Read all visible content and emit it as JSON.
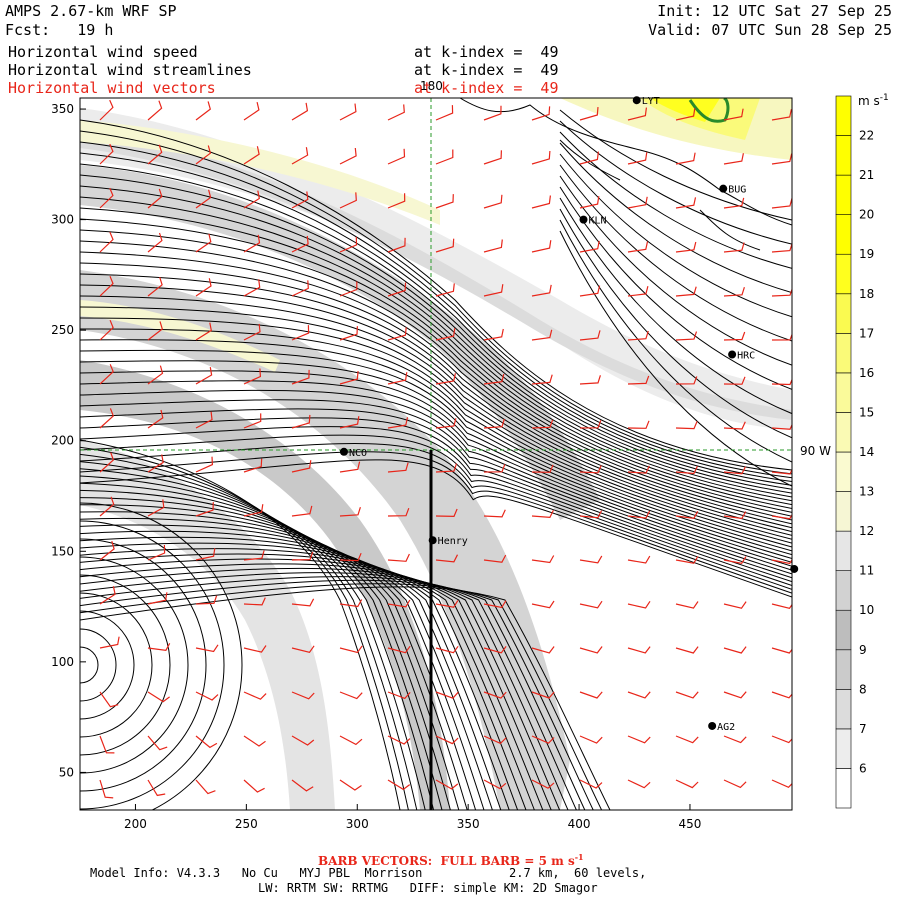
{
  "header": {
    "model": "AMPS 2.67-km WRF SP",
    "forecast": "Fcst:   19 h",
    "init": "Init: 12 UTC Sat 27 Sep 25",
    "valid": "Valid: 07 UTC Sun 28 Sep 25",
    "fields": [
      {
        "name": "Horizontal wind speed",
        "level": "at k-index =  49",
        "color": "#000000"
      },
      {
        "name": "Horizontal wind streamlines",
        "level": "at k-index =  49",
        "color": "#000000"
      },
      {
        "name": "Horizontal wind vectors",
        "level": "at k-index =  49",
        "color": "#e8261a"
      }
    ]
  },
  "map_labels": {
    "meridian": "180",
    "parallel": "90 W"
  },
  "stations": [
    {
      "code": "LYT",
      "x": 426,
      "y": 354
    },
    {
      "code": "BUG",
      "x": 465,
      "y": 314
    },
    {
      "code": "KLN",
      "x": 402,
      "y": 300
    },
    {
      "code": "HRC",
      "x": 469,
      "y": 239
    },
    {
      "code": "NCO",
      "x": 294,
      "y": 195
    },
    {
      "code": "Henry",
      "x": 334,
      "y": 155
    },
    {
      "code": "",
      "x": 497,
      "y": 142
    },
    {
      "code": "AG2",
      "x": 460,
      "y": 71
    }
  ],
  "colorbar": {
    "unit": "m s",
    "unit_sup": "-1",
    "levels": [
      "6",
      "7",
      "8",
      "9",
      "10",
      "11",
      "12",
      "13",
      "14",
      "15",
      "16",
      "17",
      "18",
      "19",
      "20",
      "21",
      "22"
    ],
    "colors": [
      "#ffffff",
      "#ededed",
      "#dcdcdc",
      "#cbcbcb",
      "#bdbdbd",
      "#d2d2d2",
      "#e6e6e6",
      "#f6f6d4",
      "#fafad0",
      "#fafab4",
      "#fafa9a",
      "#fafa78",
      "#fafa50",
      "#ffff1e",
      "#ffff00",
      "#ffff00",
      "#ffff00",
      "#ffff00"
    ]
  },
  "chart_data": {
    "type": "heatmap",
    "title": "Horizontal wind speed",
    "units": "m s-1",
    "x_ticks": [
      200,
      250,
      300,
      350,
      400,
      450
    ],
    "y_ticks": [
      50,
      100,
      150,
      200,
      250,
      300,
      350
    ],
    "xlim": [
      175,
      496
    ],
    "ylim": [
      33,
      355
    ],
    "grid": "dashed green lines at 180 meridian and 90 W",
    "overlays": [
      "wind streamlines (black)",
      "wind barbs (red)"
    ]
  },
  "footer": {
    "barb_title": "BARB VECTORS:  FULL BARB = 5 m s",
    "barb_sup": "-1",
    "line1": "Model Info: V4.3.3   No Cu   MYJ PBL  Morrison            2.7 km,  60 levels,",
    "line2": "LW: RRTM SW: RRTMG   DIFF: simple KM: 2D Smagor"
  }
}
